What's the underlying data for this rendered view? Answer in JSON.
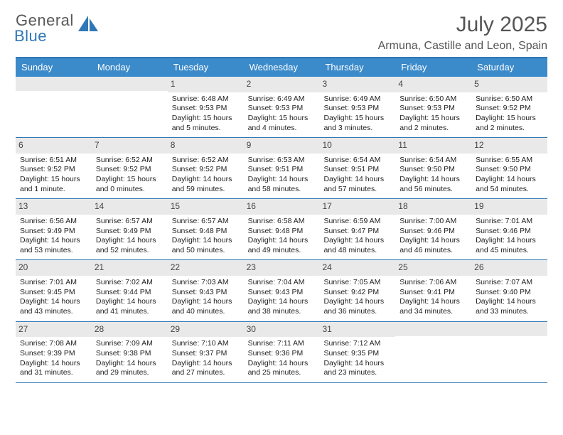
{
  "logo": {
    "word1": "General",
    "word2": "Blue",
    "sail_color": "#2f77b6",
    "text_color": "#585858"
  },
  "header": {
    "month": "July 2025",
    "location": "Armuna, Castille and Leon, Spain"
  },
  "colors": {
    "accent": "#3b8aca",
    "border": "#2f77b6",
    "daynum_bg": "#e9e9e9"
  },
  "dow": [
    "Sunday",
    "Monday",
    "Tuesday",
    "Wednesday",
    "Thursday",
    "Friday",
    "Saturday"
  ],
  "weeks": [
    [
      {
        "n": "",
        "sr": "",
        "ss": "",
        "dl": ""
      },
      {
        "n": "",
        "sr": "",
        "ss": "",
        "dl": ""
      },
      {
        "n": "1",
        "sr": "Sunrise: 6:48 AM",
        "ss": "Sunset: 9:53 PM",
        "dl": "Daylight: 15 hours and 5 minutes."
      },
      {
        "n": "2",
        "sr": "Sunrise: 6:49 AM",
        "ss": "Sunset: 9:53 PM",
        "dl": "Daylight: 15 hours and 4 minutes."
      },
      {
        "n": "3",
        "sr": "Sunrise: 6:49 AM",
        "ss": "Sunset: 9:53 PM",
        "dl": "Daylight: 15 hours and 3 minutes."
      },
      {
        "n": "4",
        "sr": "Sunrise: 6:50 AM",
        "ss": "Sunset: 9:53 PM",
        "dl": "Daylight: 15 hours and 2 minutes."
      },
      {
        "n": "5",
        "sr": "Sunrise: 6:50 AM",
        "ss": "Sunset: 9:52 PM",
        "dl": "Daylight: 15 hours and 2 minutes."
      }
    ],
    [
      {
        "n": "6",
        "sr": "Sunrise: 6:51 AM",
        "ss": "Sunset: 9:52 PM",
        "dl": "Daylight: 15 hours and 1 minute."
      },
      {
        "n": "7",
        "sr": "Sunrise: 6:52 AM",
        "ss": "Sunset: 9:52 PM",
        "dl": "Daylight: 15 hours and 0 minutes."
      },
      {
        "n": "8",
        "sr": "Sunrise: 6:52 AM",
        "ss": "Sunset: 9:52 PM",
        "dl": "Daylight: 14 hours and 59 minutes."
      },
      {
        "n": "9",
        "sr": "Sunrise: 6:53 AM",
        "ss": "Sunset: 9:51 PM",
        "dl": "Daylight: 14 hours and 58 minutes."
      },
      {
        "n": "10",
        "sr": "Sunrise: 6:54 AM",
        "ss": "Sunset: 9:51 PM",
        "dl": "Daylight: 14 hours and 57 minutes."
      },
      {
        "n": "11",
        "sr": "Sunrise: 6:54 AM",
        "ss": "Sunset: 9:50 PM",
        "dl": "Daylight: 14 hours and 56 minutes."
      },
      {
        "n": "12",
        "sr": "Sunrise: 6:55 AM",
        "ss": "Sunset: 9:50 PM",
        "dl": "Daylight: 14 hours and 54 minutes."
      }
    ],
    [
      {
        "n": "13",
        "sr": "Sunrise: 6:56 AM",
        "ss": "Sunset: 9:49 PM",
        "dl": "Daylight: 14 hours and 53 minutes."
      },
      {
        "n": "14",
        "sr": "Sunrise: 6:57 AM",
        "ss": "Sunset: 9:49 PM",
        "dl": "Daylight: 14 hours and 52 minutes."
      },
      {
        "n": "15",
        "sr": "Sunrise: 6:57 AM",
        "ss": "Sunset: 9:48 PM",
        "dl": "Daylight: 14 hours and 50 minutes."
      },
      {
        "n": "16",
        "sr": "Sunrise: 6:58 AM",
        "ss": "Sunset: 9:48 PM",
        "dl": "Daylight: 14 hours and 49 minutes."
      },
      {
        "n": "17",
        "sr": "Sunrise: 6:59 AM",
        "ss": "Sunset: 9:47 PM",
        "dl": "Daylight: 14 hours and 48 minutes."
      },
      {
        "n": "18",
        "sr": "Sunrise: 7:00 AM",
        "ss": "Sunset: 9:46 PM",
        "dl": "Daylight: 14 hours and 46 minutes."
      },
      {
        "n": "19",
        "sr": "Sunrise: 7:01 AM",
        "ss": "Sunset: 9:46 PM",
        "dl": "Daylight: 14 hours and 45 minutes."
      }
    ],
    [
      {
        "n": "20",
        "sr": "Sunrise: 7:01 AM",
        "ss": "Sunset: 9:45 PM",
        "dl": "Daylight: 14 hours and 43 minutes."
      },
      {
        "n": "21",
        "sr": "Sunrise: 7:02 AM",
        "ss": "Sunset: 9:44 PM",
        "dl": "Daylight: 14 hours and 41 minutes."
      },
      {
        "n": "22",
        "sr": "Sunrise: 7:03 AM",
        "ss": "Sunset: 9:43 PM",
        "dl": "Daylight: 14 hours and 40 minutes."
      },
      {
        "n": "23",
        "sr": "Sunrise: 7:04 AM",
        "ss": "Sunset: 9:43 PM",
        "dl": "Daylight: 14 hours and 38 minutes."
      },
      {
        "n": "24",
        "sr": "Sunrise: 7:05 AM",
        "ss": "Sunset: 9:42 PM",
        "dl": "Daylight: 14 hours and 36 minutes."
      },
      {
        "n": "25",
        "sr": "Sunrise: 7:06 AM",
        "ss": "Sunset: 9:41 PM",
        "dl": "Daylight: 14 hours and 34 minutes."
      },
      {
        "n": "26",
        "sr": "Sunrise: 7:07 AM",
        "ss": "Sunset: 9:40 PM",
        "dl": "Daylight: 14 hours and 33 minutes."
      }
    ],
    [
      {
        "n": "27",
        "sr": "Sunrise: 7:08 AM",
        "ss": "Sunset: 9:39 PM",
        "dl": "Daylight: 14 hours and 31 minutes."
      },
      {
        "n": "28",
        "sr": "Sunrise: 7:09 AM",
        "ss": "Sunset: 9:38 PM",
        "dl": "Daylight: 14 hours and 29 minutes."
      },
      {
        "n": "29",
        "sr": "Sunrise: 7:10 AM",
        "ss": "Sunset: 9:37 PM",
        "dl": "Daylight: 14 hours and 27 minutes."
      },
      {
        "n": "30",
        "sr": "Sunrise: 7:11 AM",
        "ss": "Sunset: 9:36 PM",
        "dl": "Daylight: 14 hours and 25 minutes."
      },
      {
        "n": "31",
        "sr": "Sunrise: 7:12 AM",
        "ss": "Sunset: 9:35 PM",
        "dl": "Daylight: 14 hours and 23 minutes."
      },
      {
        "n": "",
        "sr": "",
        "ss": "",
        "dl": ""
      },
      {
        "n": "",
        "sr": "",
        "ss": "",
        "dl": ""
      }
    ]
  ]
}
